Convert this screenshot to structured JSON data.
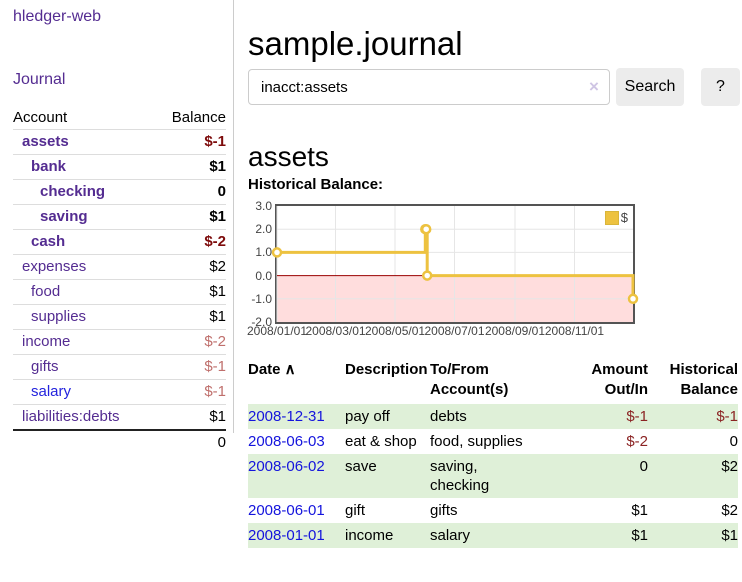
{
  "sidebar": {
    "brand": "hledger-web",
    "nav": {
      "journal": "Journal"
    },
    "accounts_table": {
      "col_account": "Account",
      "col_balance": "Balance",
      "rows": [
        {
          "name": "assets",
          "depth": 1,
          "balance": "$-1",
          "bold": true,
          "neg": "strong",
          "link": "purple"
        },
        {
          "name": "bank",
          "depth": 2,
          "balance": "$1",
          "bold": true,
          "neg": "none",
          "link": "purple"
        },
        {
          "name": "checking",
          "depth": 3,
          "balance": "0",
          "bold": true,
          "neg": "none",
          "link": "purple"
        },
        {
          "name": "saving",
          "depth": 3,
          "balance": "$1",
          "bold": true,
          "neg": "none",
          "link": "purple"
        },
        {
          "name": "cash",
          "depth": 2,
          "balance": "$-2",
          "bold": true,
          "neg": "strong",
          "link": "purple"
        },
        {
          "name": "expenses",
          "depth": 1,
          "balance": "$2",
          "bold": false,
          "neg": "none",
          "link": "purple"
        },
        {
          "name": "food",
          "depth": 2,
          "balance": "$1",
          "bold": false,
          "neg": "none",
          "link": "purple"
        },
        {
          "name": "supplies",
          "depth": 2,
          "balance": "$1",
          "bold": false,
          "neg": "none",
          "link": "purple"
        },
        {
          "name": "income",
          "depth": 1,
          "balance": "$-2",
          "bold": false,
          "neg": "muted",
          "link": "purple"
        },
        {
          "name": "gifts",
          "depth": 2,
          "balance": "$-1",
          "bold": false,
          "neg": "muted",
          "link": "purple"
        },
        {
          "name": "salary",
          "depth": 2,
          "balance": "$-1",
          "bold": false,
          "neg": "muted",
          "link": "blue"
        },
        {
          "name": "liabilities:debts",
          "depth": 1,
          "balance": "$1",
          "bold": false,
          "neg": "none",
          "link": "purple"
        }
      ],
      "total": "0"
    }
  },
  "main": {
    "title": "sample.journal",
    "search": {
      "value": "inacct:assets",
      "clear_icon": "×",
      "search_label": "Search",
      "help_label": "?"
    },
    "account_heading": "assets",
    "chart_title": "Historical Balance:"
  },
  "chart_data": {
    "type": "line",
    "style": "steps",
    "series": [
      {
        "name": "$",
        "color": "#edc240",
        "points": [
          [
            "2008-01-01",
            1.0
          ],
          [
            "2008-06-01",
            2.0
          ],
          [
            "2008-06-02",
            2.0
          ],
          [
            "2008-06-03",
            0.0
          ],
          [
            "2008-12-31",
            -1.0
          ]
        ]
      }
    ],
    "x_range": [
      "2008-01-01",
      "2008-12-31"
    ],
    "ylim": [
      -2,
      3
    ],
    "y_ticks": [
      3,
      2,
      1,
      0,
      -1,
      -2
    ],
    "y_tick_labels": [
      "3.0",
      "2.0",
      "1.0",
      "0.0",
      "-1.0",
      "-2.0"
    ],
    "x_ticks": [
      "2008-01-01",
      "2008-03-01",
      "2008-05-01",
      "2008-07-01",
      "2008-09-01",
      "2008-11-01"
    ],
    "x_tick_labels": [
      "2008/01/01",
      "2008/03/01",
      "2008/05/01",
      "2008/07/01",
      "2008/09/01",
      "2008/11/01"
    ],
    "legend": {
      "label": "$",
      "position": "top-right"
    },
    "grid": true,
    "negative_fill": "#ffdddd",
    "zero_line_color": "#990000",
    "grid_color": "#e6e6e6",
    "border_color": "#545454"
  },
  "register": {
    "headers": [
      {
        "label": "Date",
        "sort_icon": "∧",
        "align": "left"
      },
      {
        "label": "Description",
        "align": "left"
      },
      {
        "label": "To/From Account(s)",
        "align": "left"
      },
      {
        "label": "Amount Out/In",
        "align": "right"
      },
      {
        "label": "Historical Balance",
        "align": "right"
      }
    ],
    "rows": [
      {
        "date": "2008-12-31",
        "description": "pay off",
        "to_from": [
          "debts"
        ],
        "amount": "$-1",
        "amount_neg": true,
        "balance": "$-1",
        "balance_neg": true,
        "shaded": true
      },
      {
        "date": "2008-06-03",
        "description": "eat & shop",
        "to_from": [
          "food, supplies"
        ],
        "amount": "$-2",
        "amount_neg": true,
        "balance": "0",
        "balance_neg": false,
        "shaded": false
      },
      {
        "date": "2008-06-02",
        "description": "save",
        "to_from": [
          "saving,",
          "checking"
        ],
        "amount": "0",
        "amount_neg": false,
        "balance": "$2",
        "balance_neg": false,
        "shaded": true
      },
      {
        "date": "2008-06-01",
        "description": "gift",
        "to_from": [
          "gifts"
        ],
        "amount": "$1",
        "amount_neg": false,
        "balance": "$2",
        "balance_neg": false,
        "shaded": false
      },
      {
        "date": "2008-01-01",
        "description": "income",
        "to_from": [
          "salary"
        ],
        "amount": "$1",
        "amount_neg": false,
        "balance": "$1",
        "balance_neg": false,
        "shaded": true
      }
    ]
  }
}
